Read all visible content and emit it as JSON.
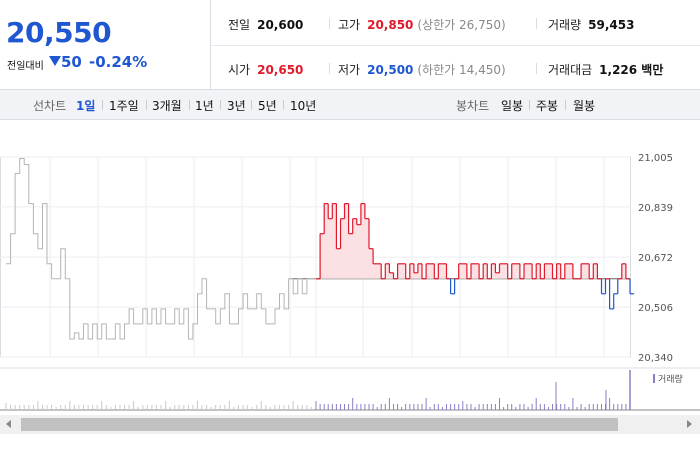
{
  "quote": {
    "price": "20,550",
    "change_label": "전일대비",
    "change_value": "50",
    "change_pct": "-0.24%"
  },
  "stats": {
    "prev_close": {
      "label": "전일",
      "value": "20,600"
    },
    "high": {
      "label": "고가",
      "value": "20,850",
      "extra": "(상한가 26,750)"
    },
    "volume": {
      "label": "거래량",
      "value": "59,453"
    },
    "open": {
      "label": "시가",
      "value": "20,650"
    },
    "low": {
      "label": "저가",
      "value": "20,500",
      "extra": "(하한가 14,450)"
    },
    "amount": {
      "label": "거래대금",
      "value": "1,226 백만"
    }
  },
  "tabs": {
    "line_label": "선차트",
    "line": [
      "1일",
      "1주일",
      "3개월",
      "1년",
      "3년",
      "5년",
      "10년"
    ],
    "active": "1일",
    "candle_label": "봉차트",
    "candle": [
      "일봉",
      "주봉",
      "월봉"
    ]
  },
  "colors": {
    "up": "#e0192b",
    "down": "#1f57d1",
    "prior": "#b5b5b5",
    "volume": "#8a7fc4",
    "fill": "#fbe1e4"
  },
  "chart_data": {
    "type": "line",
    "title": "",
    "ylim": [
      20340,
      21005
    ],
    "yticks": [
      21005,
      20839,
      20672,
      20506,
      20340
    ],
    "ytick_labels": [
      "21,005",
      "20,839",
      "20,672",
      "20,506",
      "20,340"
    ],
    "baseline": 20600,
    "grid": true,
    "prior_series": {
      "name": "prior",
      "values": [
        20650,
        20750,
        20950,
        21000,
        20980,
        20850,
        20750,
        20700,
        20850,
        20650,
        20600,
        20600,
        20700,
        20600,
        20400,
        20420,
        20400,
        20450,
        20400,
        20450,
        20400,
        20450,
        20400,
        20400,
        20450,
        20400,
        20450,
        20500,
        20450,
        20450,
        20500,
        20450,
        20500,
        20450,
        20500,
        20450,
        20450,
        20500,
        20450,
        20500,
        20400,
        20450,
        20550,
        20600,
        20500,
        20500,
        20450,
        20500,
        20550,
        20450,
        20450,
        20500,
        20550,
        20500,
        20500,
        20550,
        20500,
        20450,
        20450,
        20500,
        20550,
        20500,
        20600,
        20550,
        20600,
        20550,
        20600,
        20600,
        20600
      ]
    },
    "series": [
      {
        "name": "1일",
        "values": [
          20600,
          20750,
          20850,
          20800,
          20850,
          20700,
          20800,
          20850,
          20750,
          20800,
          20780,
          20850,
          20800,
          20700,
          20650,
          20650,
          20600,
          20650,
          20620,
          20600,
          20650,
          20650,
          20600,
          20650,
          20620,
          20650,
          20600,
          20650,
          20650,
          20600,
          20650,
          20650,
          20600,
          20550,
          20600,
          20650,
          20650,
          20600,
          20650,
          20650,
          20600,
          20650,
          20600,
          20650,
          20620,
          20650,
          20650,
          20600,
          20650,
          20650,
          20600,
          20650,
          20650,
          20600,
          20650,
          20600,
          20650,
          20650,
          20600,
          20650,
          20600,
          20650,
          20650,
          20600,
          20600,
          20650,
          20650,
          20600,
          20650,
          20600,
          20550,
          20600,
          20500,
          20550,
          20600,
          20650,
          20600,
          20550
        ]
      }
    ],
    "volume_label": "거래량"
  }
}
